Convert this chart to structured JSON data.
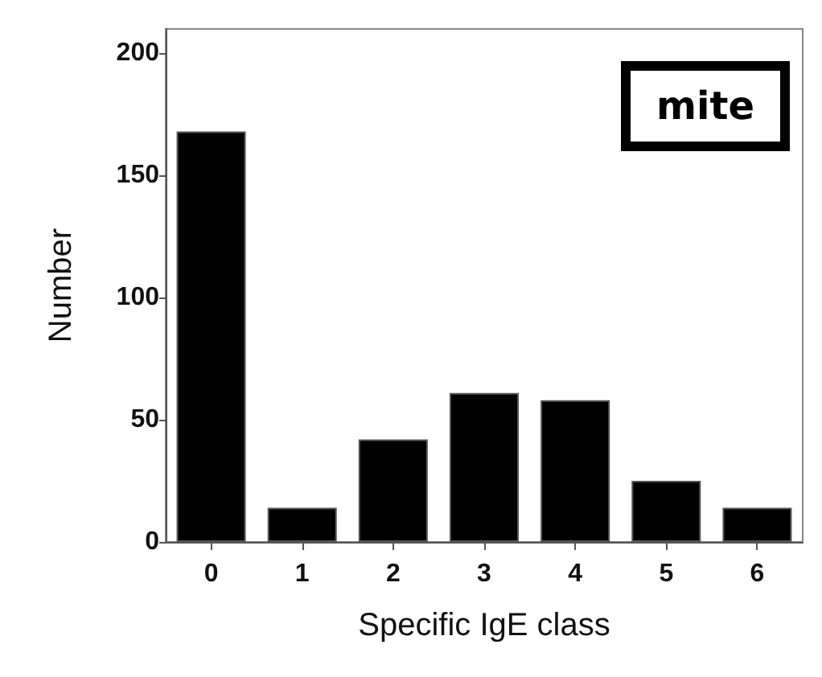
{
  "chart_data": {
    "type": "bar",
    "xlabel": "Specific IgE class",
    "ylabel": "Number",
    "categories": [
      "0",
      "1",
      "2",
      "3",
      "4",
      "5",
      "6"
    ],
    "values": [
      168,
      14,
      42,
      61,
      58,
      25,
      14
    ],
    "color": "#000000",
    "ylim": [
      0,
      210
    ],
    "yticks": [
      0,
      50,
      100,
      150,
      200
    ],
    "grid": false,
    "annotations": [
      "mite"
    ]
  }
}
